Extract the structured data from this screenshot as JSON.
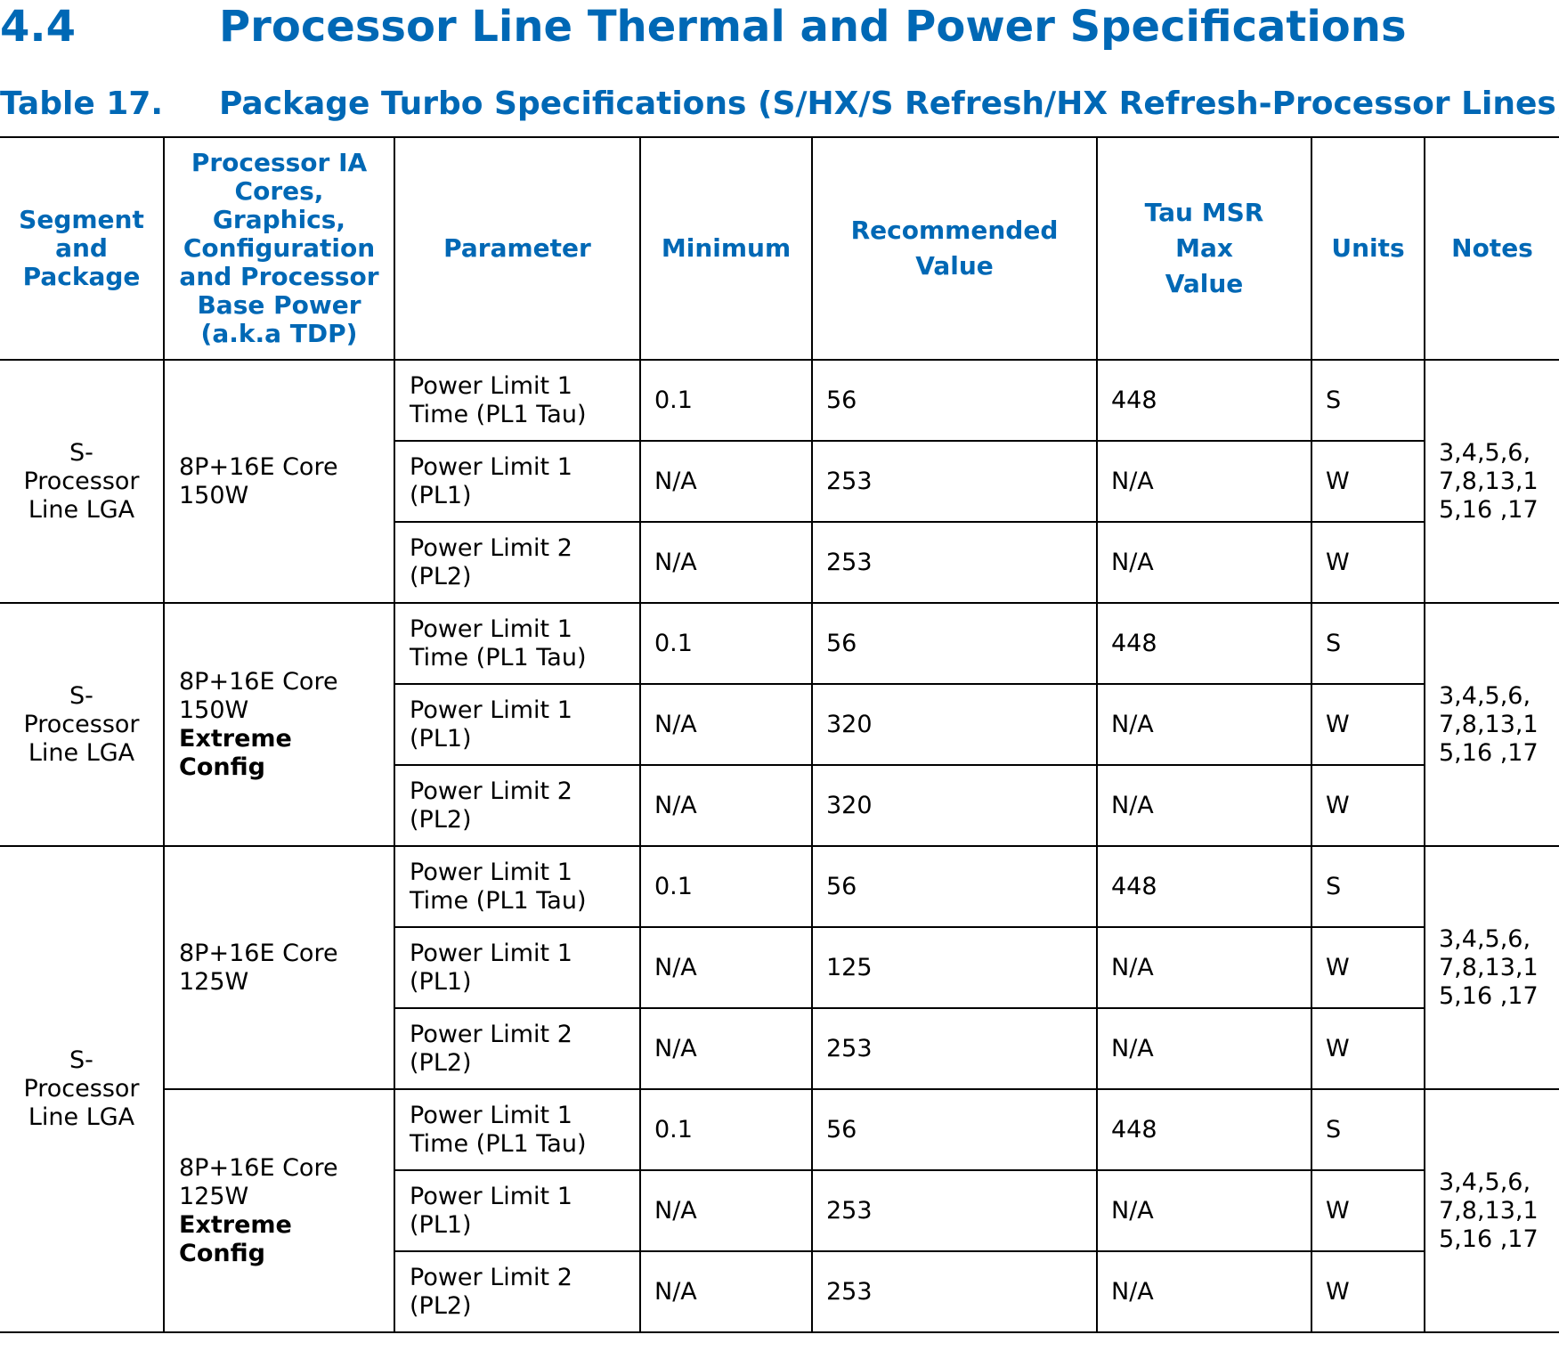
{
  "section": {
    "number": "4.4",
    "title": "Processor Line Thermal and Power Specifications"
  },
  "table_caption": {
    "label": "Table 17.",
    "title": "Package Turbo Specifications (S/HX/S Refresh/HX Refresh-Processor Lines)"
  },
  "table": {
    "headers": {
      "segment": [
        "Segment",
        "and",
        "Package"
      ],
      "config": [
        "Processor IA",
        "Cores,",
        "Graphics,",
        "Configuration",
        "and Processor",
        "Base Power",
        "(a.k.a TDP)"
      ],
      "parameter": "Parameter",
      "minimum": "Minimum",
      "recommended": [
        "Recommended",
        "Value"
      ],
      "tau": [
        "Tau MSR",
        "Max",
        "Value"
      ],
      "units": "Units",
      "notes": "Notes"
    },
    "groups": [
      {
        "segment": [
          "S-",
          "Processor",
          "Line LGA"
        ],
        "config": [
          "8P+16E Core",
          "150W"
        ],
        "config_bold": [],
        "notes": [
          "3,4,5,6,",
          "7,8,13,1",
          "5,16 ,17"
        ],
        "rows": [
          {
            "param": [
              "Power Limit 1",
              "Time (PL1 Tau)"
            ],
            "min": "0.1",
            "rec": "56",
            "tau": "448",
            "units": "S"
          },
          {
            "param": [
              "Power Limit 1",
              "(PL1)"
            ],
            "min": "N/A",
            "rec": "253",
            "tau": "N/A",
            "units": "W"
          },
          {
            "param": [
              "Power Limit 2",
              "(PL2)"
            ],
            "min": "N/A",
            "rec": "253",
            "tau": "N/A",
            "units": "W"
          }
        ]
      },
      {
        "segment": [
          "S-",
          "Processor",
          "Line LGA"
        ],
        "config": [
          "8P+16E Core",
          "150W"
        ],
        "config_bold": [
          "Extreme",
          "Config"
        ],
        "notes": [
          "3,4,5,6,",
          "7,8,13,1",
          "5,16 ,17"
        ],
        "rows": [
          {
            "param": [
              "Power Limit 1",
              "Time (PL1 Tau)"
            ],
            "min": "0.1",
            "rec": "56",
            "tau": "448",
            "units": "S"
          },
          {
            "param": [
              "Power Limit 1",
              "(PL1)"
            ],
            "min": "N/A",
            "rec": "320",
            "tau": "N/A",
            "units": "W"
          },
          {
            "param": [
              "Power Limit 2",
              "(PL2)"
            ],
            "min": "N/A",
            "rec": "320",
            "tau": "N/A",
            "units": "W"
          }
        ]
      },
      {
        "segment": [
          "S-",
          "Processor",
          "Line LGA"
        ],
        "config": [
          "8P+16E Core",
          "125W"
        ],
        "config_bold": [],
        "notes": [
          "3,4,5,6,",
          "7,8,13,1",
          "5,16 ,17"
        ],
        "rows": [
          {
            "param": [
              "Power Limit 1",
              "Time (PL1 Tau)"
            ],
            "min": "0.1",
            "rec": "56",
            "tau": "448",
            "units": "S"
          },
          {
            "param": [
              "Power Limit 1",
              "(PL1)"
            ],
            "min": "N/A",
            "rec": "125",
            "tau": "N/A",
            "units": "W"
          },
          {
            "param": [
              "Power Limit 2",
              "(PL2)"
            ],
            "min": "N/A",
            "rec": "253",
            "tau": "N/A",
            "units": "W"
          }
        ]
      },
      {
        "segment": [],
        "config": [
          "8P+16E Core",
          "125W"
        ],
        "config_bold": [
          "Extreme",
          "Config"
        ],
        "notes": [
          "3,4,5,6,",
          "7,8,13,1",
          "5,16 ,17"
        ],
        "rows": [
          {
            "param": [
              "Power Limit 1",
              "Time (PL1 Tau)"
            ],
            "min": "0.1",
            "rec": "56",
            "tau": "448",
            "units": "S"
          },
          {
            "param": [
              "Power Limit 1",
              "(PL1)"
            ],
            "min": "N/A",
            "rec": "253",
            "tau": "N/A",
            "units": "W"
          },
          {
            "param": [
              "Power Limit 2",
              "(PL2)"
            ],
            "min": "N/A",
            "rec": "253",
            "tau": "N/A",
            "units": "W"
          }
        ]
      }
    ]
  }
}
